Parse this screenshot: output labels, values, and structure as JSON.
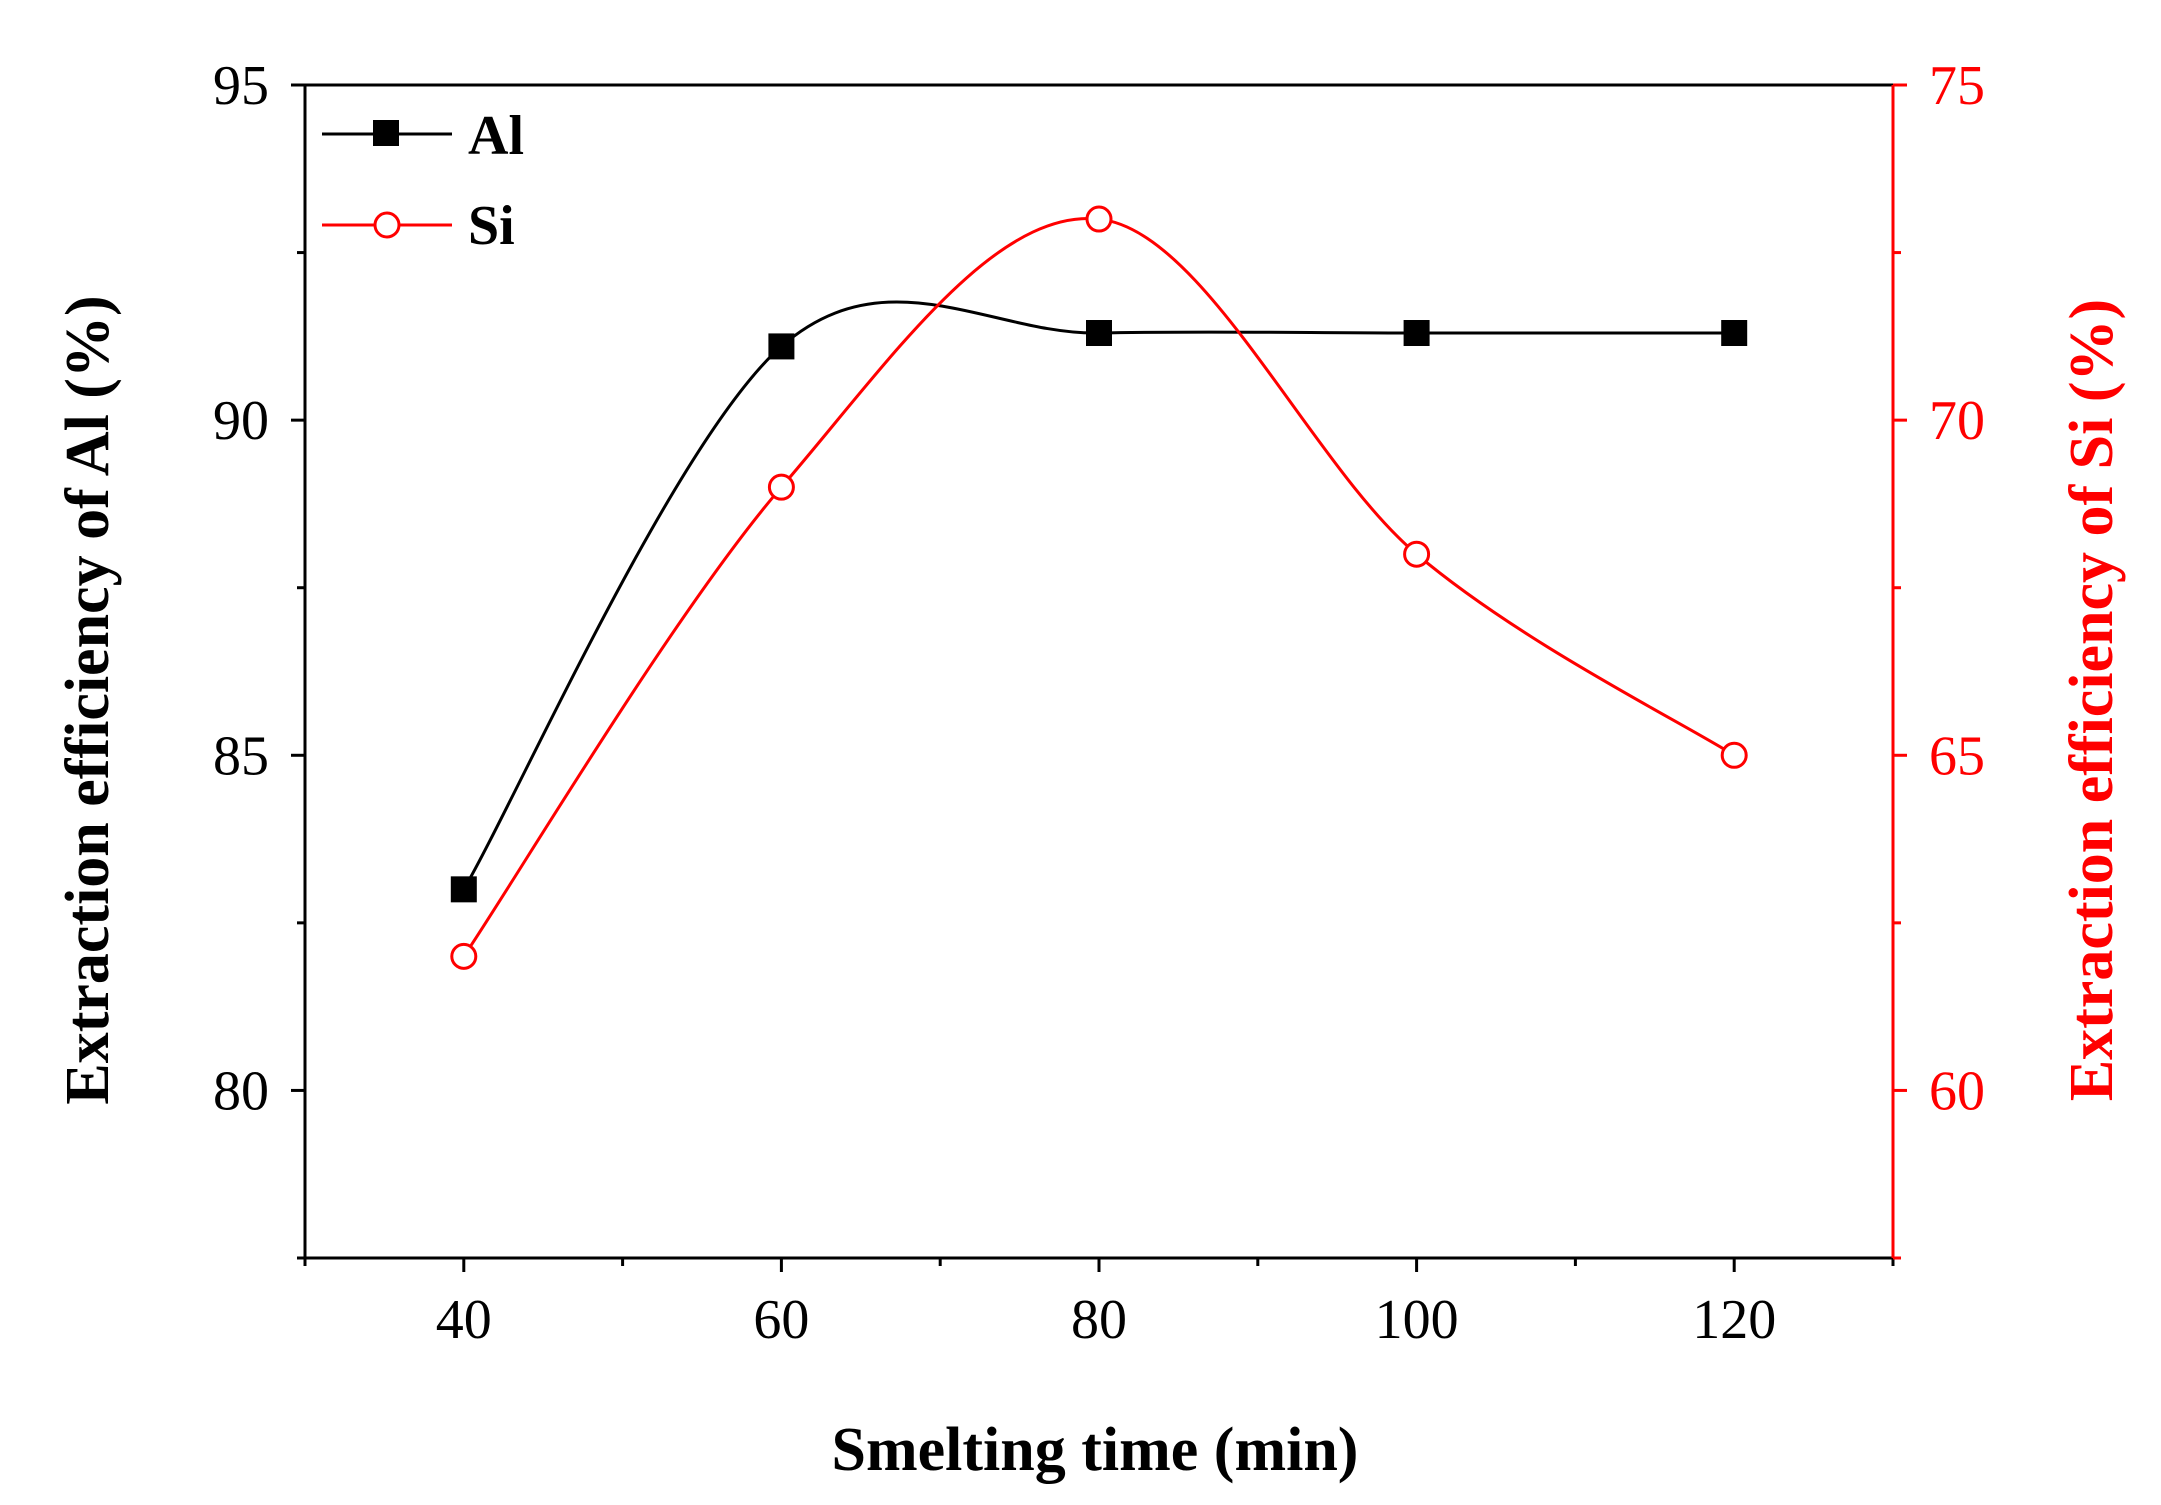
{
  "chart_data": {
    "type": "line",
    "title": "",
    "xlabel": "Smelting time (min)",
    "ylabel_left": "Extraction efficiency of Al (%)",
    "ylabel_right": "Extraction efficiency of Si (%)",
    "xlim": [
      30,
      130
    ],
    "ylim_left": [
      77.5,
      95
    ],
    "ylim_right": [
      57.5,
      75
    ],
    "x_ticks": [
      "40",
      "60",
      "80",
      "100",
      "120"
    ],
    "x_tick_values": [
      40,
      60,
      80,
      100,
      120
    ],
    "x_minor_ticks": [
      30,
      50,
      70,
      90,
      110,
      130
    ],
    "y_left_ticks": [
      "80",
      "85",
      "90",
      "95"
    ],
    "y_left_tick_values": [
      80,
      85,
      90,
      95
    ],
    "y_right_ticks": [
      "60",
      "65",
      "70",
      "75"
    ],
    "y_right_tick_values": [
      60,
      65,
      70,
      75
    ],
    "grid": false,
    "legend_position": "top-left",
    "series": [
      {
        "name": "Al",
        "axis": "left",
        "color": "#000000",
        "marker": "filled-square",
        "x": [
          40,
          60,
          80,
          100,
          120
        ],
        "values": [
          83.0,
          91.1,
          91.3,
          91.3,
          91.3
        ]
      },
      {
        "name": "Si",
        "axis": "right",
        "color": "#ff0000",
        "marker": "open-circle",
        "x": [
          40,
          60,
          80,
          100,
          120
        ],
        "values": [
          62.0,
          69.0,
          73.0,
          68.0,
          65.0
        ]
      }
    ]
  }
}
